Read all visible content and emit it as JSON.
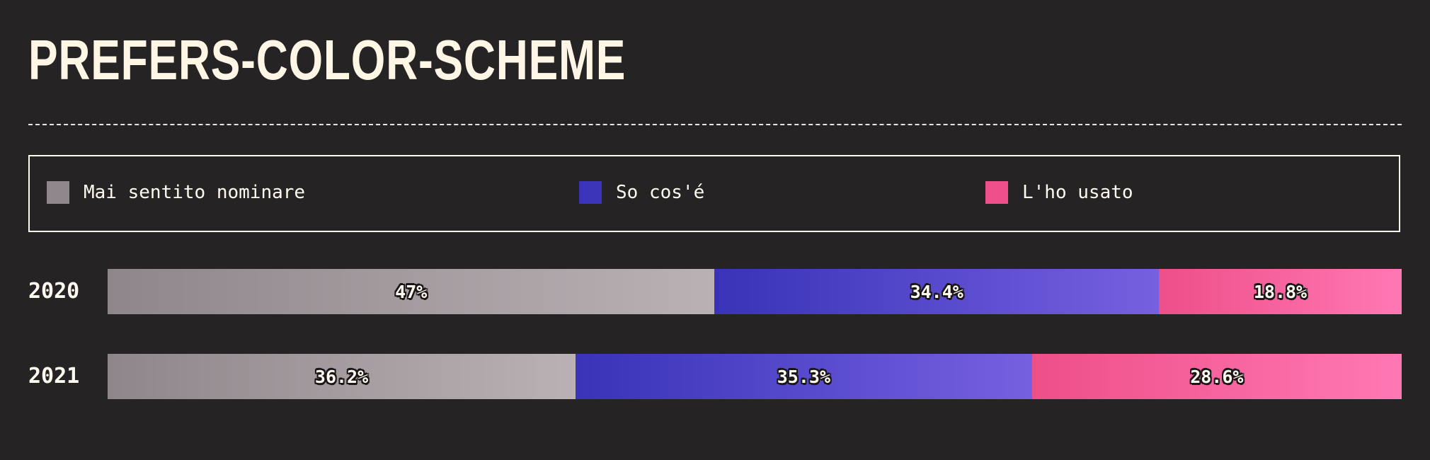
{
  "title": "PREFERS-COLOR-SCHEME",
  "legend": {
    "items": [
      {
        "label": "Mai sentito nominare",
        "color": "#8f878c"
      },
      {
        "label": "So cos'é",
        "color": "#3b34b8"
      },
      {
        "label": "L'ho usato",
        "color": "#f0508a"
      }
    ]
  },
  "chart_data": {
    "type": "bar",
    "orientation": "horizontal",
    "stacked": true,
    "categories": [
      "2020",
      "2021"
    ],
    "series": [
      {
        "name": "Mai sentito nominare",
        "values": [
          47,
          36.2
        ],
        "labels": [
          "47%",
          "36.2%"
        ],
        "gradient": [
          "#8f868b",
          "#b9b1b4"
        ]
      },
      {
        "name": "So cos'é",
        "values": [
          34.4,
          35.3
        ],
        "labels": [
          "34.4%",
          "35.3%"
        ],
        "gradient": [
          "#3833b8",
          "#7660e0"
        ]
      },
      {
        "name": "L'ho usato",
        "values": [
          18.8,
          28.6
        ],
        "labels": [
          "18.8%",
          "28.6%"
        ],
        "gradient": [
          "#ee4f88",
          "#ff78b4"
        ]
      }
    ],
    "xlim": [
      0,
      100
    ],
    "grid": false,
    "legend_position": "top"
  }
}
